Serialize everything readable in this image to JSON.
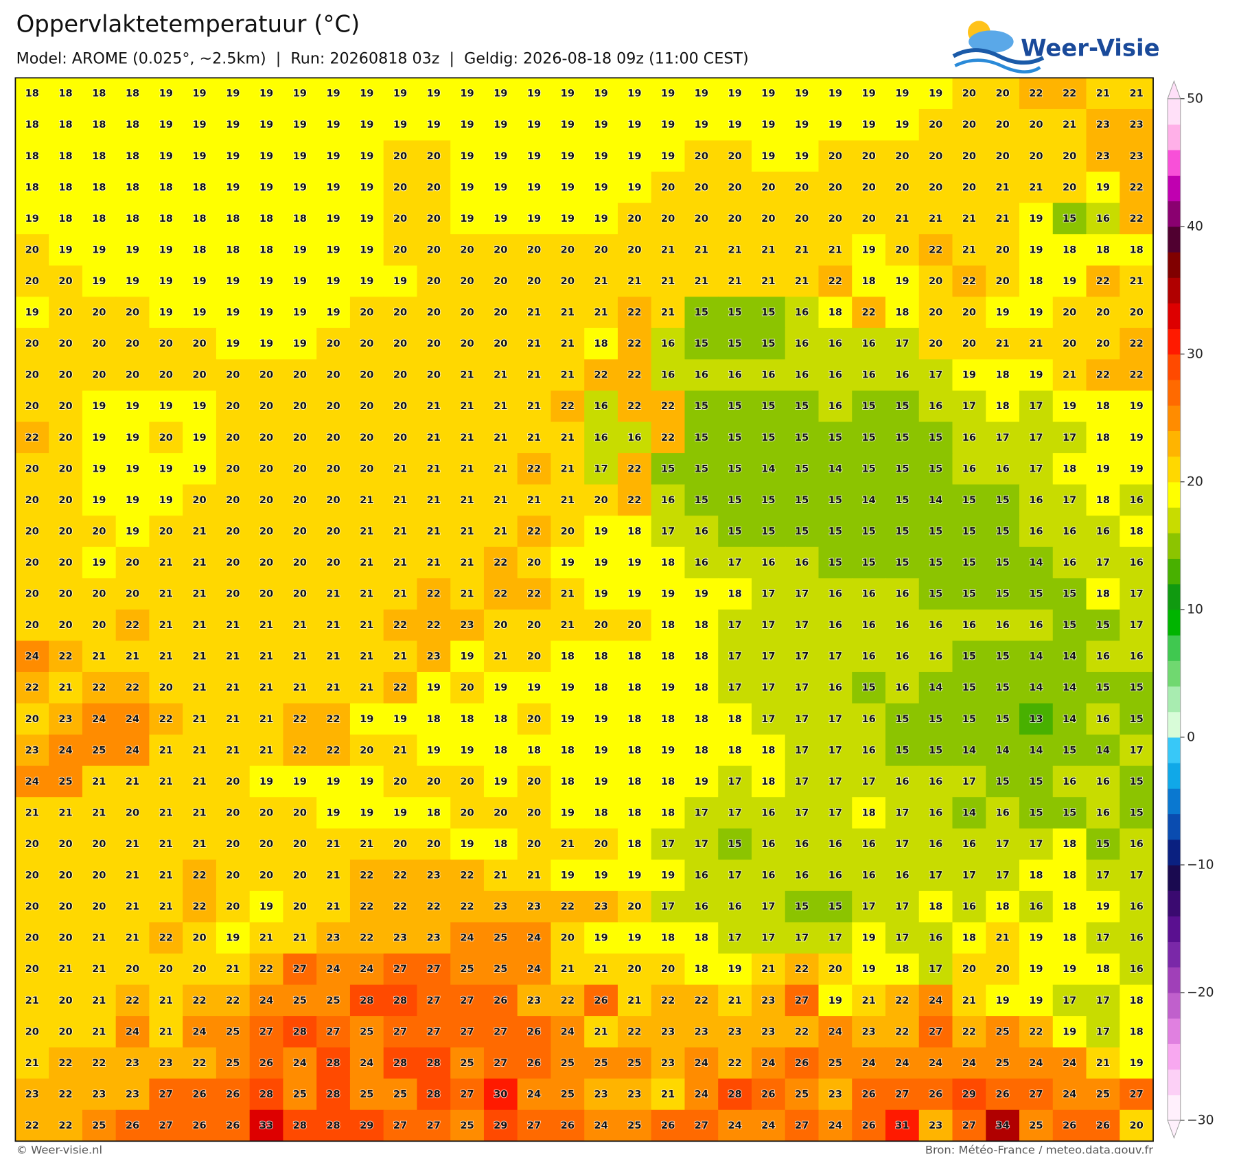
{
  "header": {
    "title": "Oppervlaktetemperatuur (°C)",
    "subtitle": "Model: AROME (0.025°, ~2.5km)  |  Run: 20260818 03z  |  Geldig: 2026-08-18 09z (11:00 CEST)",
    "logo": "Weer-Visie"
  },
  "chart_data": {
    "type": "heatmap",
    "clim": [
      -30,
      50
    ],
    "colors": [
      "#fff0fc",
      "#fcd0f6",
      "#f8a8f0",
      "#e080e0",
      "#c060cc",
      "#a040b8",
      "#7a28a8",
      "#5a1090",
      "#3a0a70",
      "#1a0a50",
      "#0a2080",
      "#0a4cb0",
      "#0a78d0",
      "#10a8e8",
      "#38c8f8",
      "#d8fcd8",
      "#a8ecb0",
      "#70d870",
      "#40c850",
      "#00b400",
      "#109a10",
      "#48b000",
      "#8cc400",
      "#c8dc00",
      "#ffff00",
      "#ffd800",
      "#ffb400",
      "#ff8c00",
      "#ff6a00",
      "#ff4a00",
      "#ff1a00",
      "#dd0000",
      "#b00000",
      "#800000",
      "#500030",
      "#8a0070",
      "#c000b0",
      "#f850d8",
      "#ffb0e8",
      "#ffe0f8"
    ],
    "cticks": [
      50,
      40,
      30,
      20,
      10,
      0,
      {
        "value": -10,
        "label": "−10"
      },
      {
        "value": -20,
        "label": "−20"
      },
      {
        "value": -30,
        "label": "−30"
      }
    ],
    "values": [
      [
        18,
        18,
        18,
        18,
        19,
        19,
        19,
        19,
        19,
        19,
        19,
        19,
        19,
        19,
        19,
        19,
        19,
        19,
        19,
        19,
        19,
        19,
        19,
        19,
        19,
        19,
        19,
        19,
        20,
        20,
        22,
        22,
        21,
        21
      ],
      [
        18,
        18,
        18,
        18,
        19,
        19,
        19,
        19,
        19,
        19,
        19,
        19,
        19,
        19,
        19,
        19,
        19,
        19,
        19,
        19,
        19,
        19,
        19,
        19,
        19,
        19,
        19,
        20,
        20,
        20,
        20,
        21,
        23,
        23
      ],
      [
        18,
        18,
        18,
        18,
        19,
        19,
        19,
        19,
        19,
        19,
        19,
        20,
        20,
        19,
        19,
        19,
        19,
        19,
        19,
        19,
        20,
        20,
        19,
        19,
        20,
        20,
        20,
        20,
        20,
        20,
        20,
        20,
        23,
        23
      ],
      [
        18,
        18,
        18,
        18,
        18,
        18,
        19,
        19,
        19,
        19,
        19,
        20,
        20,
        19,
        19,
        19,
        19,
        19,
        19,
        20,
        20,
        20,
        20,
        20,
        20,
        20,
        20,
        20,
        20,
        21,
        21,
        20,
        19,
        22
      ],
      [
        19,
        18,
        18,
        18,
        18,
        18,
        18,
        18,
        18,
        19,
        19,
        20,
        20,
        19,
        19,
        19,
        19,
        19,
        20,
        20,
        20,
        20,
        20,
        20,
        20,
        20,
        21,
        21,
        21,
        21,
        19,
        15,
        16,
        22
      ],
      [
        20,
        19,
        19,
        19,
        19,
        18,
        18,
        18,
        19,
        19,
        19,
        20,
        20,
        20,
        20,
        20,
        20,
        20,
        20,
        21,
        21,
        21,
        21,
        21,
        21,
        19,
        20,
        22,
        21,
        20,
        19,
        18,
        18,
        18
      ],
      [
        20,
        20,
        19,
        19,
        19,
        19,
        19,
        19,
        19,
        19,
        19,
        19,
        20,
        20,
        20,
        20,
        20,
        21,
        21,
        21,
        21,
        21,
        21,
        21,
        22,
        18,
        19,
        20,
        22,
        20,
        18,
        19,
        22,
        21
      ],
      [
        19,
        20,
        20,
        20,
        19,
        19,
        19,
        19,
        19,
        19,
        20,
        20,
        20,
        20,
        20,
        21,
        21,
        21,
        22,
        21,
        15,
        15,
        15,
        16,
        18,
        22,
        18,
        20,
        20,
        19,
        19,
        20,
        20,
        20
      ],
      [
        20,
        20,
        20,
        20,
        20,
        20,
        19,
        19,
        19,
        20,
        20,
        20,
        20,
        20,
        20,
        21,
        21,
        18,
        22,
        16,
        15,
        15,
        15,
        16,
        16,
        16,
        17,
        20,
        20,
        21,
        21,
        20,
        20,
        22
      ],
      [
        20,
        20,
        20,
        20,
        20,
        20,
        20,
        20,
        20,
        20,
        20,
        20,
        20,
        21,
        21,
        21,
        21,
        22,
        22,
        16,
        16,
        16,
        16,
        16,
        16,
        16,
        16,
        17,
        19,
        18,
        19,
        21,
        22,
        22
      ],
      [
        20,
        20,
        19,
        19,
        19,
        19,
        20,
        20,
        20,
        20,
        20,
        20,
        21,
        21,
        21,
        21,
        22,
        16,
        22,
        22,
        15,
        15,
        15,
        15,
        16,
        15,
        15,
        16,
        17,
        18,
        17,
        19,
        18,
        19
      ],
      [
        22,
        20,
        19,
        19,
        20,
        19,
        20,
        20,
        20,
        20,
        20,
        20,
        21,
        21,
        21,
        21,
        21,
        16,
        16,
        22,
        15,
        15,
        15,
        15,
        15,
        15,
        15,
        15,
        16,
        17,
        17,
        17,
        18,
        19
      ],
      [
        20,
        20,
        19,
        19,
        19,
        19,
        20,
        20,
        20,
        20,
        20,
        21,
        21,
        21,
        21,
        22,
        21,
        17,
        22,
        15,
        15,
        15,
        14,
        15,
        14,
        15,
        15,
        15,
        16,
        16,
        17,
        18,
        19,
        19
      ],
      [
        20,
        20,
        19,
        19,
        19,
        20,
        20,
        20,
        20,
        20,
        21,
        21,
        21,
        21,
        21,
        21,
        21,
        20,
        22,
        16,
        15,
        15,
        15,
        15,
        15,
        14,
        15,
        14,
        15,
        15,
        16,
        17,
        18,
        16
      ],
      [
        20,
        20,
        20,
        19,
        20,
        21,
        20,
        20,
        20,
        20,
        21,
        21,
        21,
        21,
        21,
        22,
        20,
        19,
        18,
        17,
        16,
        15,
        15,
        15,
        15,
        15,
        15,
        15,
        15,
        15,
        16,
        16,
        16,
        18
      ],
      [
        20,
        20,
        19,
        20,
        21,
        21,
        20,
        20,
        20,
        20,
        21,
        21,
        21,
        21,
        22,
        20,
        19,
        19,
        19,
        18,
        16,
        17,
        16,
        16,
        15,
        15,
        15,
        15,
        15,
        15,
        14,
        16,
        17,
        16
      ],
      [
        20,
        20,
        20,
        20,
        21,
        21,
        20,
        20,
        20,
        21,
        21,
        21,
        22,
        21,
        22,
        22,
        21,
        19,
        19,
        19,
        19,
        18,
        17,
        17,
        16,
        16,
        16,
        15,
        15,
        15,
        15,
        15,
        18,
        17
      ],
      [
        20,
        20,
        20,
        22,
        21,
        21,
        21,
        21,
        21,
        21,
        21,
        22,
        22,
        23,
        20,
        20,
        21,
        20,
        20,
        18,
        18,
        17,
        17,
        17,
        16,
        16,
        16,
        16,
        16,
        16,
        16,
        15,
        15,
        17
      ],
      [
        24,
        22,
        21,
        21,
        21,
        21,
        21,
        21,
        21,
        21,
        21,
        21,
        23,
        19,
        21,
        20,
        18,
        18,
        18,
        18,
        18,
        17,
        17,
        17,
        17,
        16,
        16,
        16,
        15,
        15,
        14,
        14,
        16,
        16
      ],
      [
        22,
        21,
        22,
        22,
        20,
        21,
        21,
        21,
        21,
        21,
        21,
        22,
        19,
        20,
        19,
        19,
        19,
        18,
        18,
        19,
        18,
        17,
        17,
        17,
        16,
        15,
        16,
        14,
        15,
        15,
        14,
        14,
        15,
        15
      ],
      [
        20,
        23,
        24,
        24,
        22,
        21,
        21,
        21,
        22,
        22,
        19,
        19,
        18,
        18,
        18,
        20,
        19,
        19,
        18,
        18,
        18,
        18,
        17,
        17,
        17,
        16,
        15,
        15,
        15,
        15,
        13,
        14,
        16,
        15
      ],
      [
        23,
        24,
        25,
        24,
        21,
        21,
        21,
        21,
        22,
        22,
        20,
        21,
        19,
        19,
        18,
        18,
        18,
        19,
        18,
        19,
        18,
        18,
        18,
        17,
        17,
        16,
        15,
        15,
        14,
        14,
        14,
        15,
        14,
        17
      ],
      [
        24,
        25,
        21,
        21,
        21,
        21,
        20,
        19,
        19,
        19,
        19,
        20,
        20,
        20,
        19,
        20,
        18,
        19,
        18,
        18,
        19,
        17,
        18,
        17,
        17,
        17,
        16,
        16,
        17,
        15,
        15,
        16,
        16,
        15
      ],
      [
        21,
        21,
        21,
        20,
        21,
        21,
        20,
        20,
        20,
        19,
        19,
        19,
        18,
        20,
        20,
        20,
        19,
        18,
        18,
        18,
        17,
        17,
        16,
        17,
        17,
        18,
        17,
        16,
        14,
        16,
        15,
        15,
        16,
        15
      ],
      [
        20,
        20,
        20,
        21,
        21,
        21,
        20,
        20,
        20,
        21,
        21,
        20,
        20,
        19,
        18,
        20,
        21,
        20,
        18,
        17,
        17,
        15,
        16,
        16,
        16,
        16,
        17,
        16,
        16,
        17,
        17,
        18,
        15,
        16
      ],
      [
        20,
        20,
        20,
        21,
        21,
        22,
        20,
        20,
        20,
        21,
        22,
        22,
        23,
        22,
        21,
        21,
        19,
        19,
        19,
        19,
        16,
        17,
        16,
        16,
        16,
        16,
        16,
        17,
        17,
        17,
        18,
        18,
        17,
        17
      ],
      [
        20,
        20,
        20,
        21,
        21,
        22,
        20,
        19,
        20,
        21,
        22,
        22,
        22,
        22,
        23,
        23,
        22,
        23,
        20,
        17,
        16,
        16,
        17,
        15,
        15,
        17,
        17,
        18,
        16,
        18,
        16,
        18,
        19,
        16
      ],
      [
        20,
        20,
        21,
        21,
        22,
        20,
        19,
        21,
        21,
        23,
        22,
        23,
        23,
        24,
        25,
        24,
        20,
        19,
        19,
        18,
        18,
        17,
        17,
        17,
        17,
        19,
        17,
        16,
        18,
        21,
        19,
        18,
        17,
        16
      ],
      [
        20,
        21,
        21,
        20,
        20,
        20,
        21,
        22,
        27,
        24,
        24,
        27,
        27,
        25,
        25,
        24,
        21,
        21,
        20,
        20,
        18,
        19,
        21,
        22,
        20,
        19,
        18,
        17,
        20,
        20,
        19,
        19,
        18,
        16
      ],
      [
        21,
        20,
        21,
        22,
        21,
        22,
        22,
        24,
        25,
        25,
        28,
        28,
        27,
        27,
        26,
        23,
        22,
        26,
        21,
        22,
        22,
        21,
        23,
        27,
        19,
        21,
        22,
        24,
        21,
        19,
        19,
        17,
        17,
        18
      ],
      [
        20,
        20,
        21,
        24,
        21,
        24,
        25,
        27,
        28,
        27,
        25,
        27,
        27,
        27,
        27,
        26,
        24,
        21,
        22,
        23,
        23,
        23,
        23,
        22,
        24,
        23,
        22,
        27,
        22,
        25,
        22,
        19,
        17,
        18
      ],
      [
        21,
        22,
        22,
        23,
        23,
        22,
        25,
        26,
        24,
        28,
        24,
        28,
        28,
        25,
        27,
        26,
        25,
        25,
        25,
        23,
        24,
        22,
        24,
        26,
        25,
        24,
        24,
        24,
        24,
        25,
        24,
        24,
        21,
        19
      ],
      [
        23,
        22,
        23,
        23,
        27,
        26,
        26,
        28,
        25,
        28,
        25,
        25,
        28,
        27,
        30,
        24,
        25,
        23,
        23,
        21,
        24,
        28,
        26,
        25,
        23,
        26,
        27,
        26,
        29,
        26,
        27,
        24,
        25,
        27
      ],
      [
        22,
        22,
        25,
        26,
        27,
        26,
        26,
        33,
        28,
        28,
        29,
        27,
        27,
        25,
        29,
        27,
        26,
        24,
        25,
        26,
        27,
        24,
        24,
        27,
        24,
        26,
        31,
        23,
        27,
        34,
        25,
        26,
        26,
        20
      ]
    ]
  },
  "footer": {
    "credit": "© Weer-visie.nl",
    "source": "Bron: Météo-France / meteo.data.gouv.fr"
  }
}
